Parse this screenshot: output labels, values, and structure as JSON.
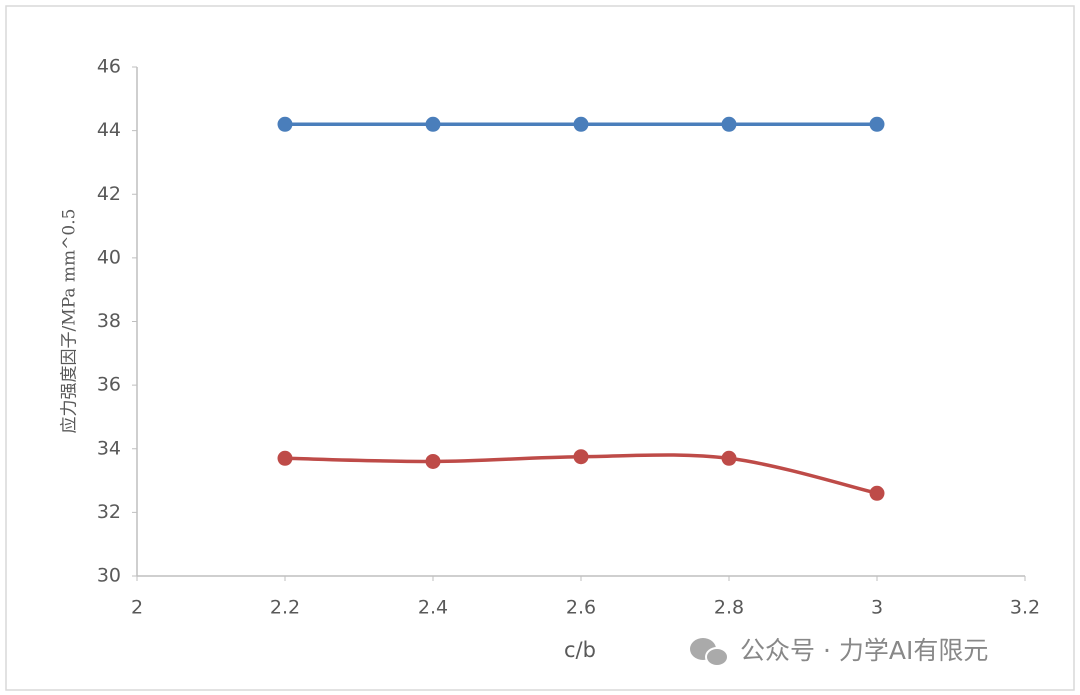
{
  "chart_data": {
    "type": "line",
    "x": [
      2.2,
      2.4,
      2.6,
      2.8,
      3
    ],
    "series": [
      {
        "color": "#4a7ebb",
        "values": [
          44.2,
          44.2,
          44.2,
          44.2,
          44.2
        ],
        "smooth": false
      },
      {
        "color": "#be4b48",
        "values": [
          33.7,
          33.6,
          33.75,
          33.7,
          32.6
        ],
        "smooth": true
      }
    ],
    "xlabel": "c/b",
    "ylabel": "应力强度因子/MPa  mm^0.5",
    "xlim": [
      2,
      3.2
    ],
    "xticks": [
      2,
      2.2,
      2.4,
      2.6,
      2.8,
      3,
      3.2
    ],
    "ylim": [
      30,
      46
    ],
    "yticks": [
      30,
      32,
      34,
      36,
      38,
      40,
      42,
      44,
      46
    ],
    "grid": false
  },
  "watermark": "公众号 · 力学AI有限元"
}
